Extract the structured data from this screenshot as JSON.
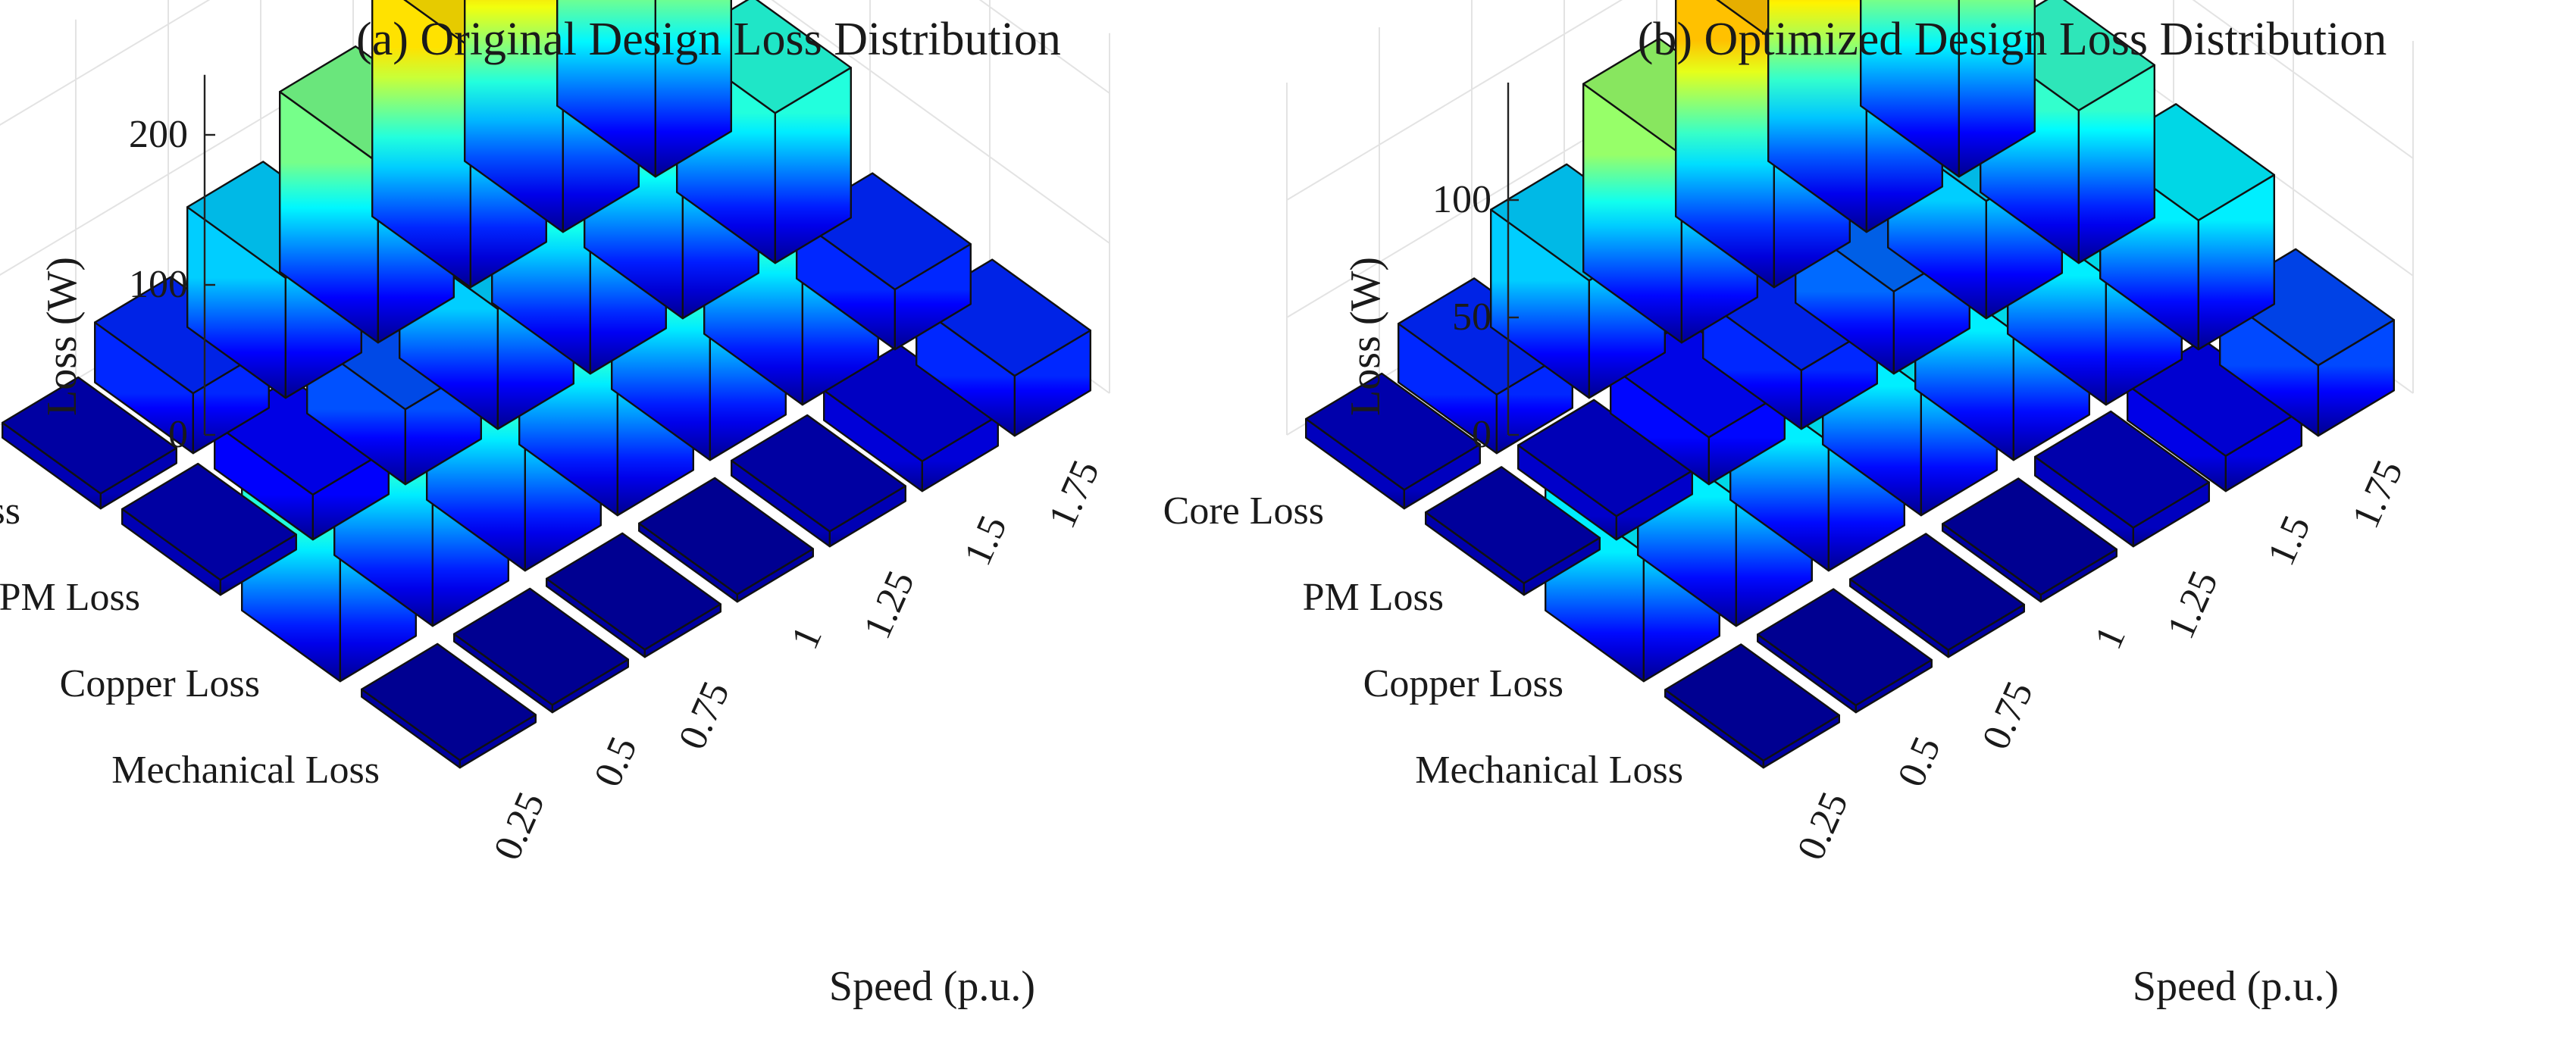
{
  "colormap": [
    "#00008f",
    "#0000ff",
    "#0080ff",
    "#00ffff",
    "#80ff80",
    "#ffff00",
    "#ff8000",
    "#ff0000",
    "#800000"
  ],
  "chart_data": [
    {
      "type": "bar3d",
      "title": "(a) Original Design Loss Distribution",
      "zlabel": "Loss (W)",
      "xlabel": "Speed (p.u.)",
      "x_categories": [
        "0.25",
        "0.5",
        "0.75",
        "1",
        "1.25",
        "1.5",
        "1.75"
      ],
      "y_categories": [
        "Core Loss",
        "PM Loss",
        "Copper Loss",
        "Mechanical Loss"
      ],
      "zticks": [
        "0",
        "100",
        "200"
      ],
      "zlim": [
        0,
        240
      ],
      "series": [
        {
          "name": "Core Loss",
          "values": [
            10,
            40,
            80,
            120,
            160,
            200,
            240
          ]
        },
        {
          "name": "PM Loss",
          "values": [
            10,
            30,
            50,
            80,
            110,
            150,
            100
          ]
        },
        {
          "name": "Copper Loss",
          "values": [
            100,
            100,
            100,
            100,
            100,
            100,
            40
          ]
        },
        {
          "name": "Mechanical Loss",
          "values": [
            5,
            5,
            5,
            5,
            10,
            20,
            40
          ]
        }
      ]
    },
    {
      "type": "bar3d",
      "title": "(b) Optimized Design Loss Distribution",
      "zlabel": "Loss (W)",
      "xlabel": "Speed (p.u.)",
      "x_categories": [
        "0.25",
        "0.5",
        "0.75",
        "1",
        "1.25",
        "1.5",
        "1.75"
      ],
      "y_categories": [
        "Core Loss",
        "PM Loss",
        "Copper Loss",
        "Mechanical Loss"
      ],
      "zticks": [
        "0",
        "50",
        "100"
      ],
      "zlim": [
        0,
        150
      ],
      "series": [
        {
          "name": "Core Loss",
          "values": [
            8,
            25,
            50,
            80,
            105,
            130,
            150
          ]
        },
        {
          "name": "PM Loss",
          "values": [
            5,
            10,
            20,
            25,
            35,
            50,
            65
          ]
        },
        {
          "name": "Copper Loss",
          "values": [
            55,
            55,
            55,
            55,
            55,
            55,
            55
          ]
        },
        {
          "name": "Mechanical Loss",
          "values": [
            3,
            3,
            3,
            3,
            8,
            15,
            30
          ]
        }
      ]
    }
  ]
}
